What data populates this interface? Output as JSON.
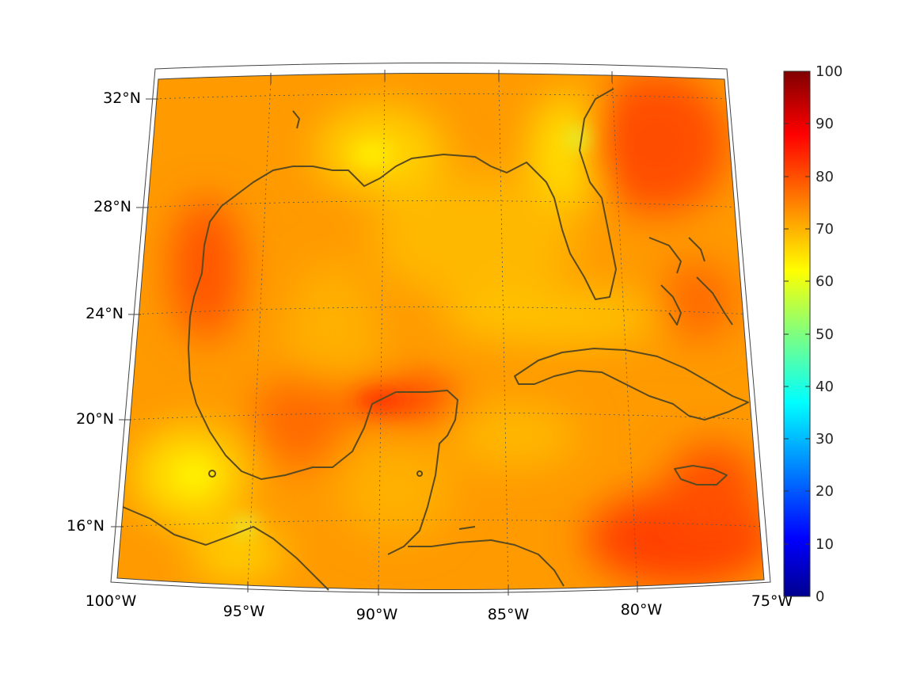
{
  "map": {
    "region": "Gulf of Mexico and Caribbean",
    "projection": "conic",
    "lon_range": [
      -100,
      -75
    ],
    "lat_range": [
      14,
      33
    ],
    "latitude_labels": [
      "32°N",
      "28°N",
      "24°N",
      "20°N",
      "16°N"
    ],
    "longitude_labels": [
      "100°W",
      "95°W",
      "90°W",
      "85°W",
      "80°W",
      "75°W"
    ],
    "gridlines": true,
    "coastline_color": "#5c4a1f"
  },
  "colorbar": {
    "colormap": "jet",
    "min": 0,
    "max": 100,
    "ticks": [
      "100",
      "90",
      "80",
      "70",
      "60",
      "50",
      "40",
      "30",
      "20",
      "10",
      "0"
    ],
    "stops": [
      "#00008f",
      "#0000ff",
      "#00ffff",
      "#7fff7f",
      "#ffff00",
      "#ff8000",
      "#ff0000",
      "#800000"
    ]
  },
  "field_colors": {
    "background": "#ff9a00",
    "yellow": "#ffd200",
    "light_yellow": "#fff000",
    "red": "#ff4d00",
    "deep_red": "#ff3300"
  }
}
